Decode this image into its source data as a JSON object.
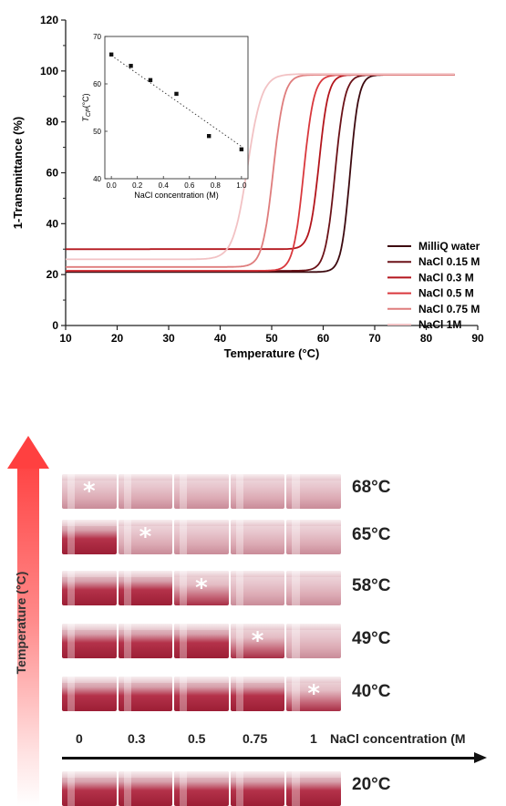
{
  "chart_data": [
    {
      "type": "line",
      "xlabel": "Temperature (°C)",
      "ylabel": "1-Transmittance (%)",
      "xlim": [
        10,
        90
      ],
      "ylim": [
        0,
        120
      ],
      "xticks": [
        10,
        20,
        30,
        40,
        50,
        60,
        70,
        80,
        90
      ],
      "yticks": [
        0,
        20,
        40,
        60,
        80,
        100,
        120
      ],
      "grid": false,
      "legend_position": "bottom-right",
      "series": [
        {
          "name": "MilliQ water",
          "color": "#3d0a10",
          "low": 21.0,
          "high": 98.5,
          "midpoint": 65.2,
          "width": 0.85,
          "x_start": 10,
          "x_end": 85.5
        },
        {
          "name": "NaCl 0.15 M",
          "color": "#6b1218",
          "low": 21.5,
          "high": 98.5,
          "midpoint": 62.3,
          "width": 0.95,
          "x_start": 10,
          "x_end": 85.5
        },
        {
          "name": "NaCl 0.3 M",
          "color": "#b3151c",
          "low": 30.0,
          "high": 98.5,
          "midpoint": 59.2,
          "width": 0.9,
          "x_start": 10,
          "x_end": 85.5
        },
        {
          "name": "NaCl 0.5 M",
          "color": "#d9383d",
          "low": 21.5,
          "high": 98.5,
          "midpoint": 56.2,
          "width": 1.0,
          "x_start": 10,
          "x_end": 85.5
        },
        {
          "name": "NaCl 0.75 M",
          "color": "#df7d7d",
          "low": 23.0,
          "high": 98.5,
          "midpoint": 50.3,
          "width": 1.05,
          "x_start": 10,
          "x_end": 85.5
        },
        {
          "name": "NaCl 1M",
          "color": "#f2c2c4",
          "low": 26.0,
          "high": 98.8,
          "midpoint": 45.3,
          "width": 1.4,
          "x_start": 10,
          "x_end": 85.5
        }
      ]
    },
    {
      "type": "scatter",
      "xlabel": "NaCl concentration (M)",
      "ylabel": "T_CP (°C)",
      "ylabel_main": "T",
      "ylabel_sub": "CP",
      "ylabel_unit": "(°C)",
      "xlim": [
        -0.05,
        1.05
      ],
      "ylim": [
        40,
        70
      ],
      "xticks": [
        "0.0",
        "0.2",
        "0.4",
        "0.6",
        "0.8",
        "1.0"
      ],
      "yticks": [
        "40",
        "50",
        "60",
        "70"
      ],
      "x": [
        0.0,
        0.15,
        0.3,
        0.5,
        0.75,
        1.0
      ],
      "y": [
        66.2,
        63.8,
        60.8,
        57.9,
        49.0,
        46.2
      ],
      "fit": {
        "style": "dotted",
        "x": [
          0.0,
          1.0
        ],
        "y": [
          66.0,
          46.8
        ]
      }
    }
  ],
  "vials": {
    "rows": [
      {
        "temp": "68°C",
        "star_col": 0,
        "cloudy_cols": [
          0,
          1,
          2,
          3,
          4
        ]
      },
      {
        "temp": "65°C",
        "star_col": 1,
        "cloudy_cols": [
          1,
          2,
          3,
          4
        ]
      },
      {
        "temp": "58°C",
        "star_col": 2,
        "cloudy_cols": [
          2,
          3,
          4
        ]
      },
      {
        "temp": "49°C",
        "star_col": 3,
        "cloudy_cols": [
          3,
          4
        ]
      },
      {
        "temp": "40°C",
        "star_col": 4,
        "cloudy_cols": [
          4
        ]
      },
      {
        "temp": "20°C",
        "star_col": -1,
        "cloudy_cols": []
      }
    ],
    "star": "*",
    "concentrations": [
      "0",
      "0.3",
      "0.5",
      "0.75",
      "1"
    ],
    "conc_axis_label": "NaCl concentration (M",
    "temp_axis_label": "Temperature (°C)"
  }
}
